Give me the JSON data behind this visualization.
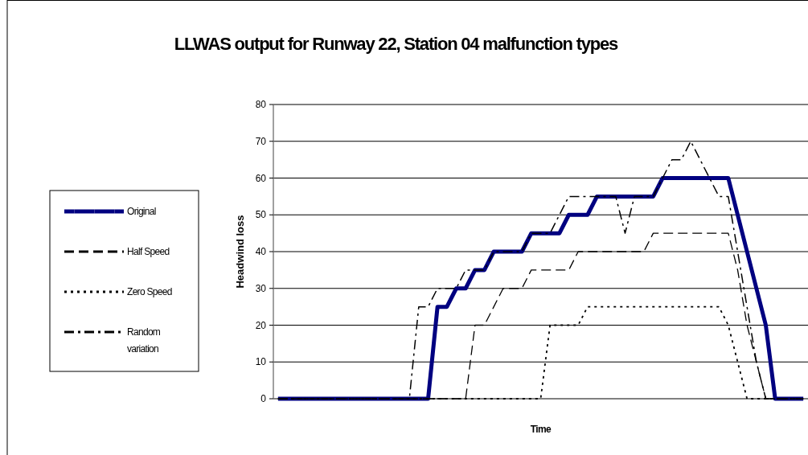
{
  "chart_data": {
    "type": "line",
    "title": "LLWAS output for Runway 22, Station 04 malfunction types",
    "xlabel": "Time",
    "ylabel": "Headwind loss",
    "categories": [
      null,
      null,
      null,
      null,
      null,
      null,
      null,
      null,
      null,
      null,
      null,
      null,
      null,
      null,
      null,
      null,
      null,
      null,
      null,
      null,
      null,
      null,
      null,
      null,
      null,
      null,
      null,
      null,
      null,
      null,
      null,
      null,
      null,
      null,
      null,
      null,
      null,
      null,
      null,
      null,
      null,
      null,
      null,
      null,
      null,
      null,
      null,
      null,
      null,
      null,
      null,
      null,
      null,
      null,
      null,
      null,
      null
    ],
    "series": [
      {
        "name": "Original",
        "color": "#000080",
        "line_style": "solid",
        "values": [
          0,
          0,
          0,
          0,
          0,
          0,
          0,
          0,
          0,
          0,
          0,
          0,
          0,
          0,
          0,
          0,
          0,
          25,
          25,
          30,
          30,
          35,
          35,
          40,
          40,
          40,
          40,
          45,
          45,
          45,
          45,
          50,
          50,
          50,
          55,
          55,
          55,
          55,
          55,
          55,
          55,
          60,
          60,
          60,
          60,
          60,
          60,
          60,
          60,
          50,
          40,
          30,
          20,
          0,
          0,
          0,
          0
        ]
      },
      {
        "name": "Half Speed",
        "color": "#000000",
        "line_style": "dashed",
        "values": [
          0,
          0,
          0,
          0,
          0,
          0,
          0,
          0,
          0,
          0,
          0,
          0,
          0,
          0,
          0,
          0,
          0,
          0,
          0,
          0,
          0,
          20,
          20,
          25,
          30,
          30,
          30,
          35,
          35,
          35,
          35,
          35,
          40,
          40,
          40,
          40,
          40,
          40,
          40,
          40,
          45,
          45,
          45,
          45,
          45,
          45,
          45,
          45,
          45,
          35,
          20,
          10,
          0,
          0,
          0,
          0,
          0
        ]
      },
      {
        "name": "Zero Speed",
        "color": "#000000",
        "line_style": "dotted",
        "values": [
          0,
          0,
          0,
          0,
          0,
          0,
          0,
          0,
          0,
          0,
          0,
          0,
          0,
          0,
          0,
          0,
          0,
          0,
          0,
          0,
          0,
          0,
          0,
          0,
          0,
          0,
          0,
          0,
          0,
          20,
          20,
          20,
          20,
          25,
          25,
          25,
          25,
          25,
          25,
          25,
          25,
          25,
          25,
          25,
          25,
          25,
          25,
          25,
          20,
          10,
          0,
          0,
          0,
          0,
          0,
          0,
          0
        ]
      },
      {
        "name": "Random variation",
        "color": "#000000",
        "line_style": "dashdot",
        "values": [
          0,
          0,
          0,
          0,
          0,
          0,
          0,
          0,
          0,
          0,
          0,
          0,
          0,
          0,
          0,
          25,
          25,
          30,
          30,
          30,
          35,
          35,
          35,
          40,
          40,
          40,
          40,
          45,
          45,
          45,
          50,
          55,
          55,
          55,
          55,
          55,
          55,
          45,
          55,
          55,
          55,
          60,
          65,
          65,
          70,
          65,
          60,
          55,
          55,
          40,
          25,
          10,
          0,
          0,
          0,
          0,
          0
        ]
      }
    ],
    "ylim": [
      0,
      80
    ],
    "yticks": [
      0,
      10,
      20,
      30,
      40,
      50,
      60,
      70,
      80
    ],
    "grid": "y",
    "legend": "left"
  }
}
